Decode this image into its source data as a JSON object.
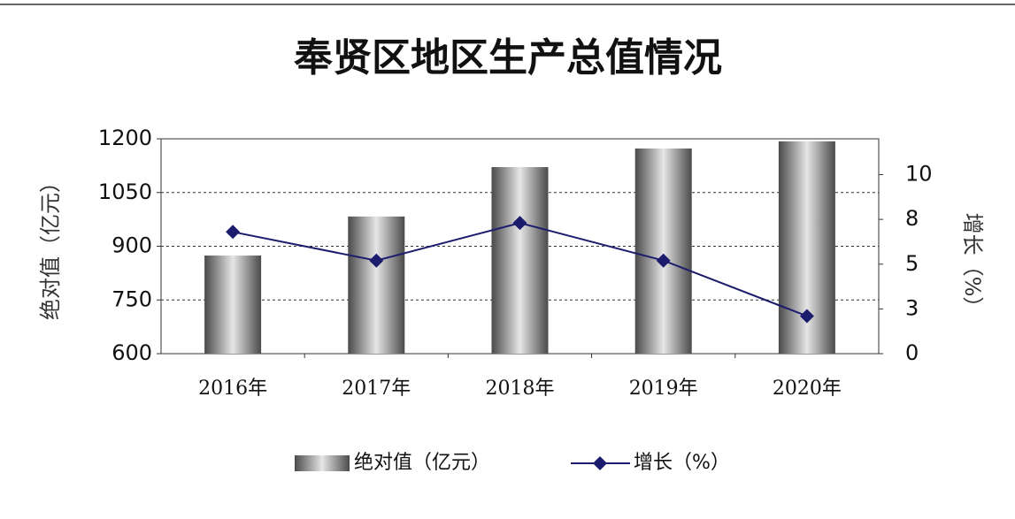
{
  "chart_data": {
    "type": "bar_line",
    "title": "奉贤区地区生产总值情况",
    "y_label": "绝对值（亿元）",
    "y2_label": "增长（%）",
    "categories": [
      "2016年",
      "2017年",
      "2018年",
      "2019年",
      "2020年"
    ],
    "series": [
      {
        "name": "绝对值（亿元）",
        "type": "bar",
        "color": "#4a4a4a",
        "values": [
          874,
          983,
          1121,
          1173,
          1193
        ]
      },
      {
        "name": "增长（%）",
        "type": "line",
        "axis": "y2",
        "color": "#1c1c6e",
        "values": [
          6.8,
          5.2,
          7.3,
          5.2,
          2.1
        ]
      }
    ],
    "ylim": [
      600,
      1200
    ],
    "yticks": [
      600,
      750,
      900,
      1050,
      1200
    ],
    "y2lim": [
      0,
      12
    ],
    "y2ticks": [
      0,
      {
        "value": 2.5,
        "label": "3"
      },
      5,
      {
        "value": 7.5,
        "label": "8"
      },
      10
    ],
    "grid": true,
    "legend": "bottom"
  }
}
